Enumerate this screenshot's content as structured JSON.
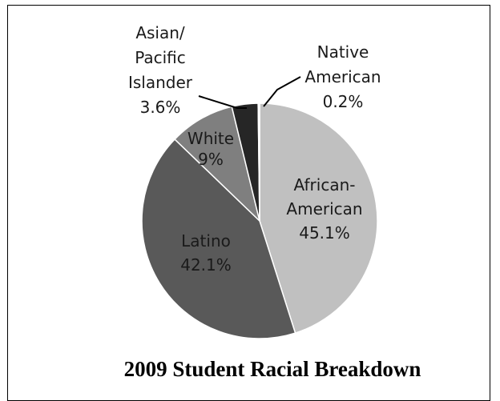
{
  "chart_data": {
    "type": "pie",
    "title": "2009 Student Racial Breakdown",
    "categories": [
      "African-American",
      "Latino",
      "White",
      "Asian/ Pacific Islander",
      "Native American"
    ],
    "values": [
      45.1,
      42.1,
      9,
      3.6,
      0.2
    ],
    "value_labels": [
      "45.1%",
      "42.1%",
      "9%",
      "3.6%",
      "0.2%"
    ],
    "label_lines": [
      [
        "African-",
        "American"
      ],
      [
        "Latino"
      ],
      [
        "White"
      ],
      [
        "Asian/",
        "Pacific",
        "Islander"
      ],
      [
        "Native",
        "American"
      ]
    ],
    "colors": [
      "#c0c0c0",
      "#595959",
      "#7f7f7f",
      "#262626",
      "#dcdcdc"
    ],
    "start": "top",
    "direction": "clockwise"
  }
}
